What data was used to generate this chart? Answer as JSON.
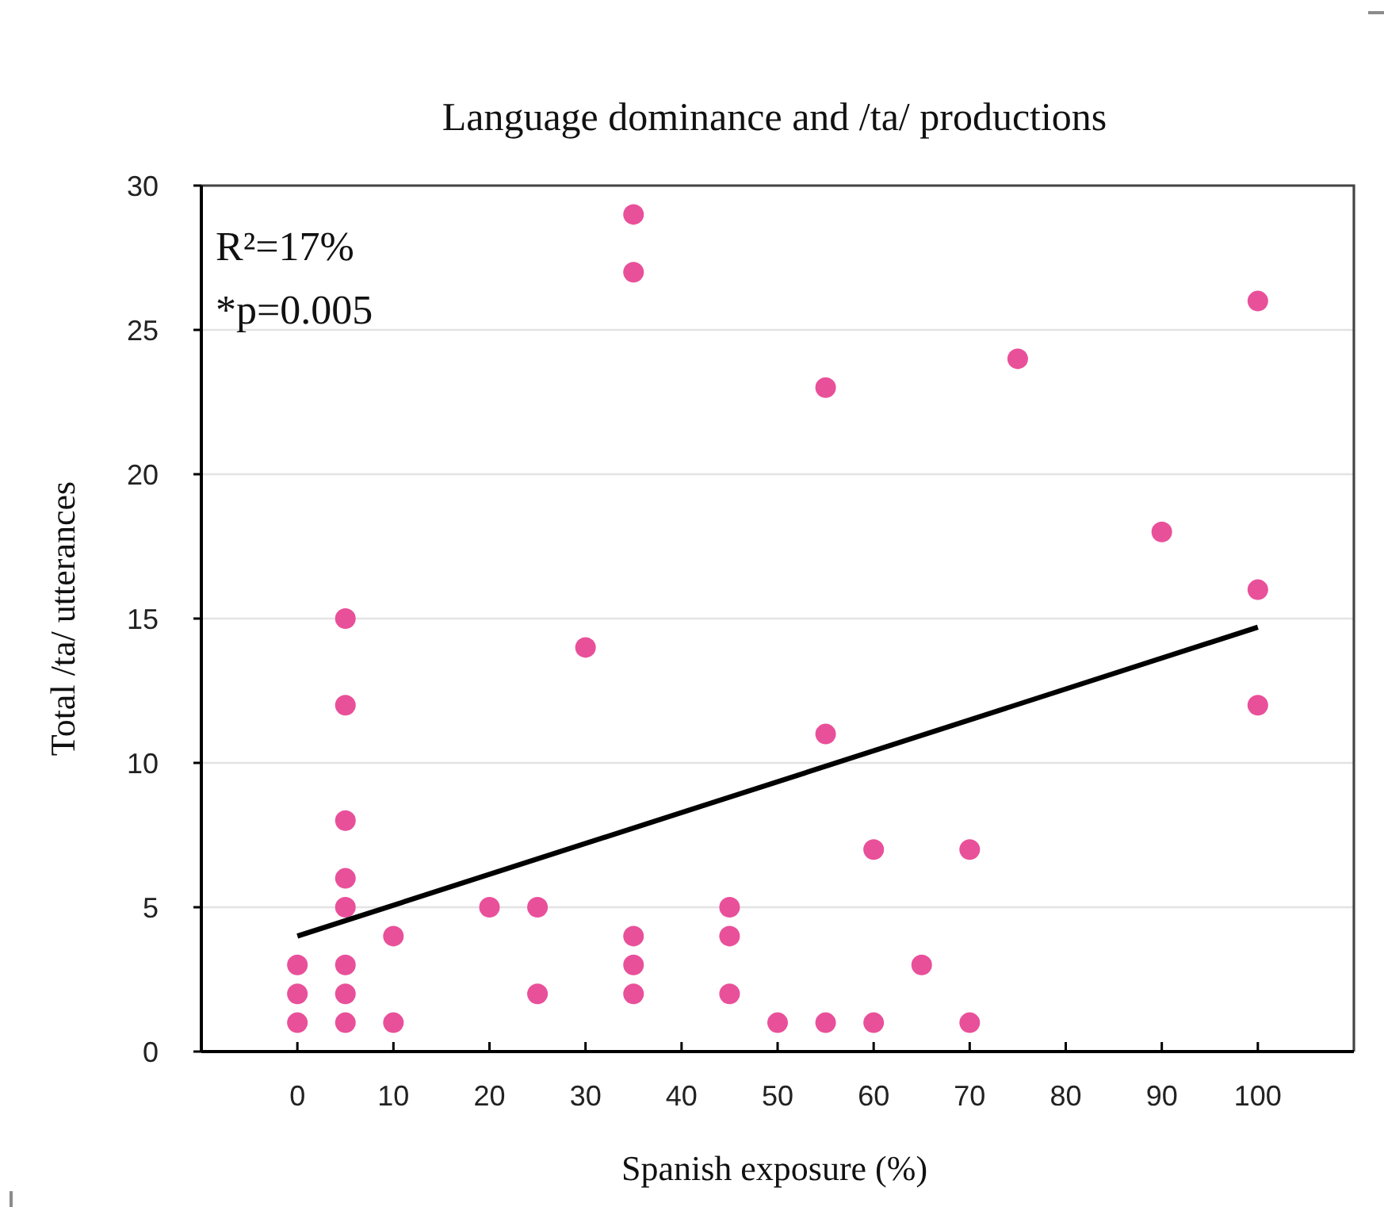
{
  "chart_data": {
    "type": "scatter",
    "title": "Language dominance and /ta/ productions",
    "xlabel": "Spanish exposure (%)",
    "ylabel": "Total /ta/ utterances",
    "annotations": [
      "R²=17%",
      "*p=0.005"
    ],
    "xlim": [
      -10,
      110
    ],
    "xticks": [
      0,
      10,
      20,
      30,
      40,
      50,
      60,
      70,
      80,
      90,
      100
    ],
    "ylim": [
      0,
      30
    ],
    "yticks": [
      0,
      5,
      10,
      15,
      20,
      25,
      30
    ],
    "grid": "y",
    "marker": "circle",
    "series": [
      {
        "color": "#e9509a",
        "x": [
          0,
          0,
          0,
          5,
          5,
          5,
          5,
          5,
          5,
          5,
          5,
          10,
          10,
          20,
          25,
          25,
          30,
          35,
          35,
          35,
          35,
          35,
          45,
          45,
          45,
          50,
          55,
          55,
          55,
          60,
          60,
          65,
          70,
          70,
          75,
          90,
          100,
          100,
          100
        ],
        "values": [
          1,
          2,
          3,
          1,
          2,
          3,
          5,
          6,
          8,
          12,
          15,
          1,
          4,
          5,
          2,
          5,
          14,
          2,
          3,
          4,
          27,
          29,
          2,
          4,
          5,
          1,
          1,
          11,
          23,
          1,
          7,
          3,
          1,
          7,
          24,
          18,
          12,
          16,
          26
        ]
      },
      {
        "type": "line",
        "color": "#000000",
        "marker": "none",
        "x": [
          0,
          100
        ],
        "values": [
          4,
          14.7
        ]
      }
    ]
  }
}
